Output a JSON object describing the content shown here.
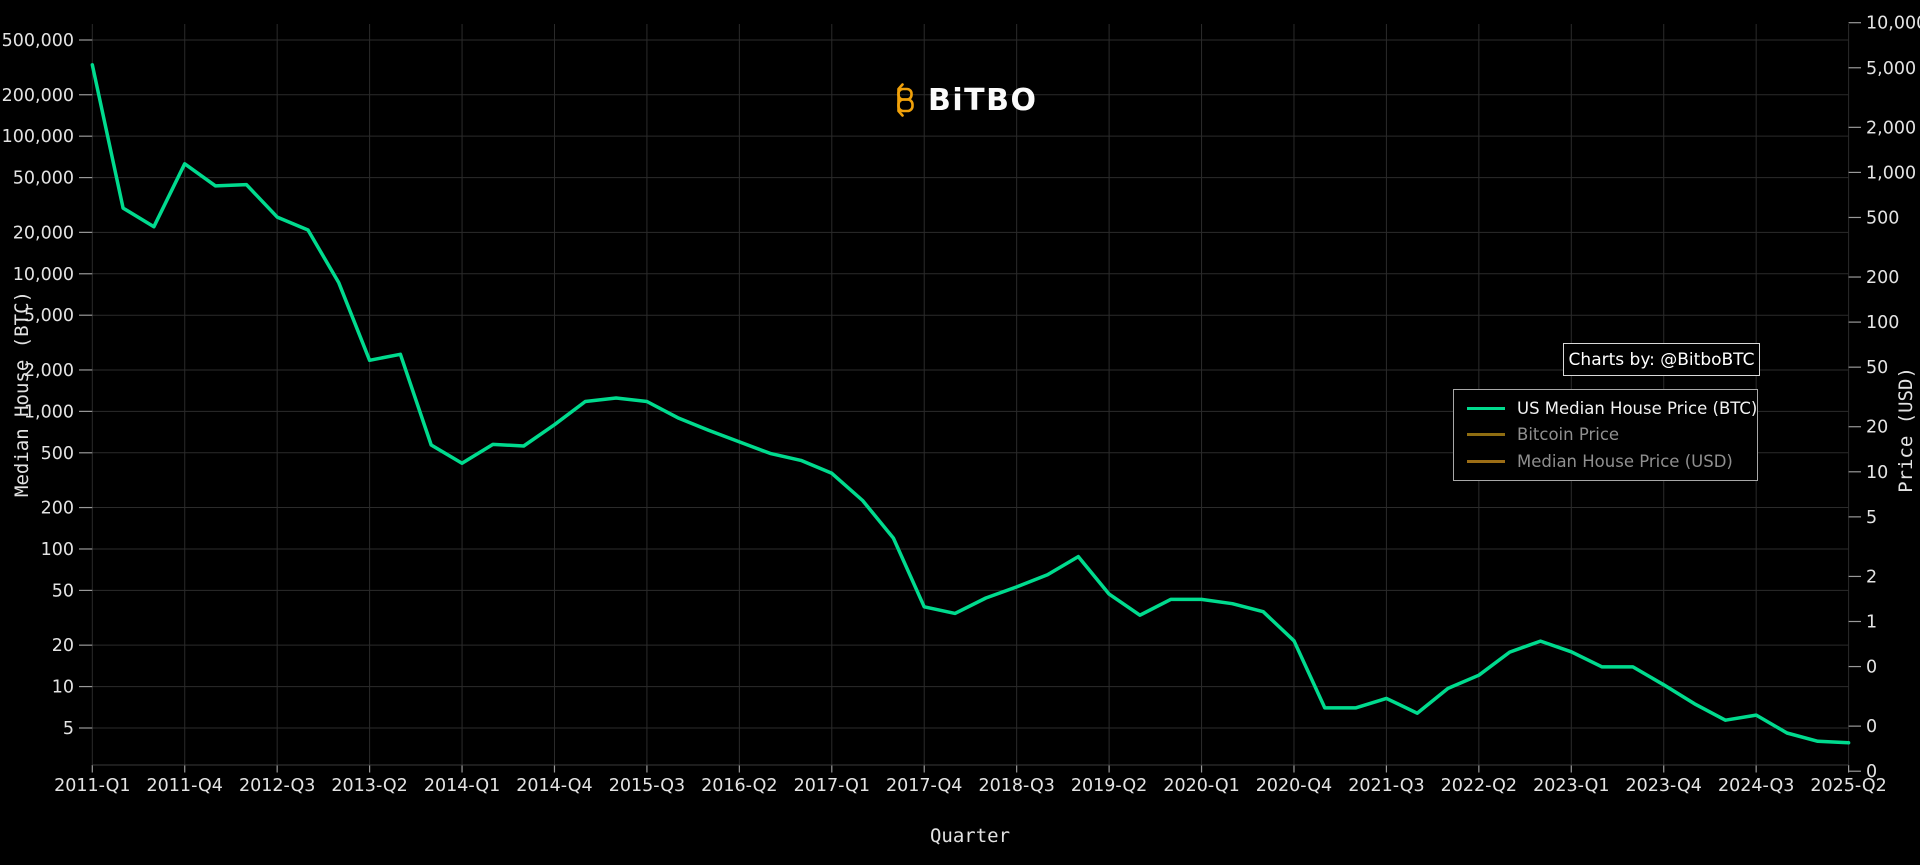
{
  "branding": {
    "logo_text": "BiTBO",
    "logo_symbol": "bitcoin-b",
    "logo_color": "#f0a10a"
  },
  "annotations": {
    "charts_by": "Charts by: @BitboBTC"
  },
  "legend": {
    "items": [
      {
        "label": "US Median House Price (BTC)",
        "color": "#00db8e",
        "active": true
      },
      {
        "label": "Bitcoin Price",
        "color": "#8f6d11",
        "active": false
      },
      {
        "label": "Median House Price (USD)",
        "color": "#9c6d15",
        "active": false
      }
    ]
  },
  "chart_data": {
    "type": "line",
    "title": "",
    "xlabel": "Quarter",
    "ylabel_left": "Median House (BTC)",
    "ylabel_right": "Price (USD)",
    "y_scale": "log",
    "grid": true,
    "legend_position": "right",
    "x": [
      "2011-Q1",
      "2011-Q2",
      "2011-Q3",
      "2011-Q4",
      "2012-Q1",
      "2012-Q2",
      "2012-Q3",
      "2012-Q4",
      "2013-Q1",
      "2013-Q2",
      "2013-Q3",
      "2013-Q4",
      "2014-Q1",
      "2014-Q2",
      "2014-Q3",
      "2014-Q4",
      "2015-Q1",
      "2015-Q2",
      "2015-Q3",
      "2015-Q4",
      "2016-Q1",
      "2016-Q2",
      "2016-Q3",
      "2016-Q4",
      "2017-Q1",
      "2017-Q2",
      "2017-Q3",
      "2017-Q4",
      "2018-Q1",
      "2018-Q2",
      "2018-Q3",
      "2018-Q4",
      "2019-Q1",
      "2019-Q2",
      "2019-Q3",
      "2019-Q4",
      "2020-Q1",
      "2020-Q2",
      "2020-Q3",
      "2020-Q4",
      "2021-Q1",
      "2021-Q2",
      "2021-Q3",
      "2021-Q4",
      "2022-Q1",
      "2022-Q2",
      "2022-Q3",
      "2022-Q4",
      "2023-Q1",
      "2023-Q2",
      "2023-Q3",
      "2023-Q4",
      "2024-Q1",
      "2024-Q2",
      "2024-Q3",
      "2024-Q4",
      "2025-Q1",
      "2025-Q2"
    ],
    "series": [
      {
        "name": "US Median House Price (BTC)",
        "axis": "left",
        "color": "#00db8e",
        "values": [
          330000,
          30000,
          22000,
          63000,
          43500,
          44500,
          25800,
          20800,
          8600,
          2350,
          2600,
          570,
          420,
          575,
          560,
          800,
          1180,
          1250,
          1180,
          900,
          730,
          600,
          495,
          440,
          355,
          225,
          120,
          38,
          34,
          44,
          53,
          65,
          88,
          47,
          33,
          43,
          43,
          40,
          35,
          21.5,
          7.0,
          7.0,
          8.2,
          6.4,
          9.7,
          12.1,
          17.8,
          21.4,
          17.9,
          13.9,
          13.9,
          10.3,
          7.5,
          5.7,
          6.2,
          4.6,
          4.0,
          3.9
        ]
      }
    ],
    "x_tick_labels": [
      "2011-Q1",
      "2011-Q4",
      "2012-Q3",
      "2013-Q2",
      "2014-Q1",
      "2014-Q4",
      "2015-Q3",
      "2016-Q2",
      "2017-Q1",
      "2017-Q4",
      "2018-Q3",
      "2019-Q2",
      "2020-Q1",
      "2020-Q4",
      "2021-Q3",
      "2022-Q2",
      "2023-Q1",
      "2023-Q4",
      "2024-Q3",
      "2025-Q2"
    ],
    "left_axis_ticks": [
      {
        "label": "500,000",
        "value": 500000
      },
      {
        "label": "200,000",
        "value": 200000
      },
      {
        "label": "100,000",
        "value": 100000
      },
      {
        "label": "50,000",
        "value": 50000
      },
      {
        "label": "20,000",
        "value": 20000
      },
      {
        "label": "10,000",
        "value": 10000
      },
      {
        "label": "5,000",
        "value": 5000
      },
      {
        "label": "2,000",
        "value": 2000
      },
      {
        "label": "1,000",
        "value": 1000
      },
      {
        "label": "500",
        "value": 500
      },
      {
        "label": "200",
        "value": 200
      },
      {
        "label": "100",
        "value": 100
      },
      {
        "label": "50",
        "value": 50
      },
      {
        "label": "20",
        "value": 20
      },
      {
        "label": "10",
        "value": 10
      },
      {
        "label": "5",
        "value": 5
      }
    ],
    "right_axis_ticks": [
      {
        "label": "10,000",
        "value": 10000
      },
      {
        "label": "5,000",
        "value": 5000
      },
      {
        "label": "2,000",
        "value": 2000
      },
      {
        "label": "1,000",
        "value": 1000
      },
      {
        "label": "500",
        "value": 500
      },
      {
        "label": "200",
        "value": 200
      },
      {
        "label": "100",
        "value": 100
      },
      {
        "label": "50",
        "value": 50
      },
      {
        "label": "20",
        "value": 20
      },
      {
        "label": "10",
        "value": 10
      },
      {
        "label": "5",
        "value": 5
      },
      {
        "label": "2",
        "value": 2
      },
      {
        "label": "1",
        "value": 1
      },
      {
        "label": "0",
        "value": 0.5
      },
      {
        "label": "0",
        "value": 0.2
      },
      {
        "label": "0",
        "value": 0.1
      }
    ],
    "colors": {
      "background": "#000000",
      "grid": "#2b2b2b",
      "tick_mark": "#999999",
      "tick_text": "#e3e3e3",
      "line_green": "#00db8e"
    }
  }
}
